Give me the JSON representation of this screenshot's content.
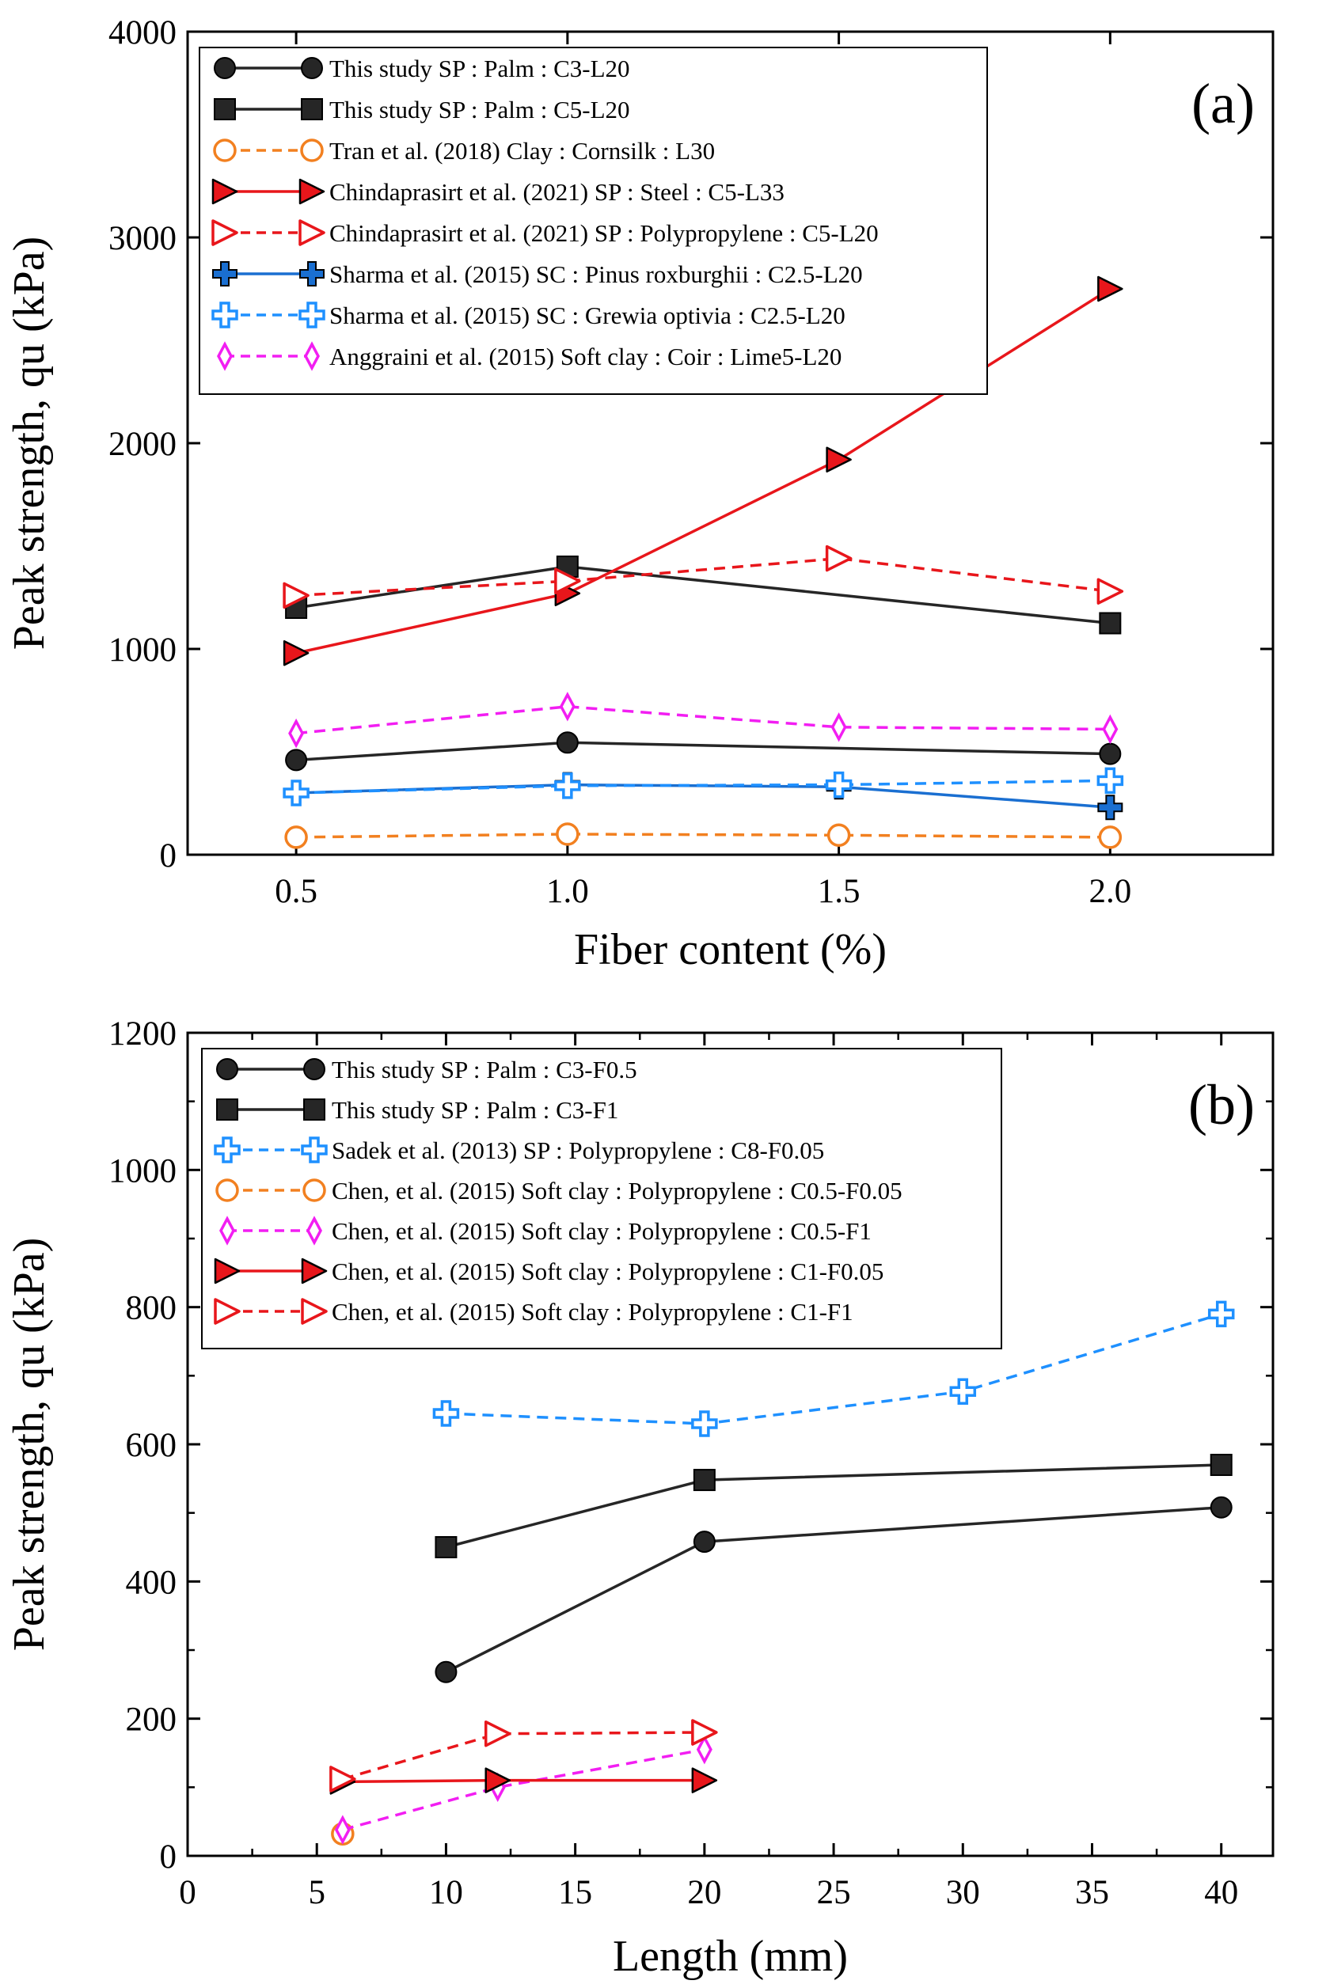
{
  "colors": {
    "black": "#000000",
    "dark": "#262626",
    "red": "#e8161b",
    "orange": "#f28020",
    "blue_dark": "#1a6fd1",
    "blue_light": "#1e90ff",
    "magenta": "#f21ef2"
  },
  "chart_data": [
    {
      "panel": "(a)",
      "type": "line",
      "xlabel": "Fiber content (%)",
      "ylabel": "Peak strength, qu (kPa)",
      "xlim": [
        0.3,
        2.3
      ],
      "ylim": [
        0,
        4000
      ],
      "xticks": [
        0.5,
        1.0,
        1.5,
        2.0
      ],
      "xtick_labels": [
        "0.5",
        "1.0",
        "1.5",
        "2.0"
      ],
      "yticks": [
        0,
        1000,
        2000,
        3000,
        4000
      ],
      "ytick_labels": [
        "0",
        "1000",
        "2000",
        "3000",
        "4000"
      ],
      "legend_position": "top-left",
      "series": [
        {
          "name": "This study  SP : Palm : C3-L20",
          "marker": "circle",
          "filled": true,
          "dashed": false,
          "color": "#262626",
          "x": [
            0.5,
            1.0,
            2.0
          ],
          "y": [
            460,
            545,
            490
          ]
        },
        {
          "name": "This study  SP : Palm : C5-L20",
          "marker": "square",
          "filled": true,
          "dashed": false,
          "color": "#262626",
          "x": [
            0.5,
            1.0,
            2.0
          ],
          "y": [
            1200,
            1400,
            1125
          ]
        },
        {
          "name": "Tran et al. (2018) Clay : Cornsilk : L30",
          "marker": "circle",
          "filled": false,
          "dashed": true,
          "color": "#f28020",
          "x": [
            0.5,
            1.0,
            1.5,
            2.0
          ],
          "y": [
            85,
            100,
            95,
            85
          ]
        },
        {
          "name": "Chindaprasirt et al. (2021) SP : Steel : C5-L33",
          "marker": "triangle-right",
          "filled": true,
          "dashed": false,
          "color": "#e8161b",
          "x": [
            0.5,
            1.0,
            1.5,
            2.0
          ],
          "y": [
            980,
            1270,
            1920,
            2750
          ]
        },
        {
          "name": "Chindaprasirt et al. (2021) SP : Polypropylene : C5-L20",
          "marker": "triangle-right",
          "filled": false,
          "dashed": true,
          "color": "#e8161b",
          "x": [
            0.5,
            1.0,
            1.5,
            2.0
          ],
          "y": [
            1260,
            1330,
            1440,
            1280
          ]
        },
        {
          "name": "Sharma et al. (2015) SC : Pinus roxburghii : C2.5-L20",
          "marker": "plus",
          "filled": true,
          "dashed": false,
          "color": "#1a6fd1",
          "x": [
            0.5,
            1.0,
            1.5,
            2.0
          ],
          "y": [
            300,
            340,
            330,
            230
          ]
        },
        {
          "name": "Sharma et al. (2015) SC : Grewia optivia : C2.5-L20",
          "marker": "plus",
          "filled": false,
          "dashed": true,
          "color": "#1e90ff",
          "x": [
            0.5,
            1.0,
            1.5,
            2.0
          ],
          "y": [
            300,
            335,
            340,
            360
          ]
        },
        {
          "name": "Anggraini et al. (2015) Soft clay : Coir : Lime5-L20",
          "marker": "diamond",
          "filled": false,
          "dashed": true,
          "color": "#f21ef2",
          "x": [
            0.5,
            1.0,
            1.5,
            2.0
          ],
          "y": [
            590,
            720,
            620,
            610
          ]
        }
      ]
    },
    {
      "panel": "(b)",
      "type": "line",
      "xlabel": "Length (mm)",
      "ylabel": "Peak strength, qu (kPa)",
      "xlim": [
        0,
        42
      ],
      "ylim": [
        0,
        1200
      ],
      "xticks": [
        0,
        5,
        10,
        15,
        20,
        25,
        30,
        35,
        40
      ],
      "xtick_labels": [
        "0",
        "5",
        "10",
        "15",
        "20",
        "25",
        "30",
        "35",
        "40"
      ],
      "yticks": [
        0,
        200,
        400,
        600,
        800,
        1000,
        1200
      ],
      "ytick_labels": [
        "0",
        "200",
        "400",
        "600",
        "800",
        "1000",
        "1200"
      ],
      "legend_position": "top-left",
      "series": [
        {
          "name": "This study SP : Palm : C3-F0.5",
          "marker": "circle",
          "filled": true,
          "dashed": false,
          "color": "#262626",
          "x": [
            10,
            20,
            40
          ],
          "y": [
            268,
            458,
            508
          ]
        },
        {
          "name": "This study SP : Palm : C3-F1",
          "marker": "square",
          "filled": true,
          "dashed": false,
          "color": "#262626",
          "x": [
            10,
            20,
            40
          ],
          "y": [
            450,
            548,
            570
          ]
        },
        {
          "name": "Sadek et al. (2013) SP : Polypropylene : C8-F0.05",
          "marker": "plus",
          "filled": false,
          "dashed": true,
          "color": "#1e90ff",
          "x": [
            10,
            20,
            30,
            40
          ],
          "y": [
            645,
            630,
            677,
            790
          ]
        },
        {
          "name": "Chen, et al. (2015) Soft clay : Polypropylene : C0.5-F0.05",
          "marker": "circle",
          "filled": false,
          "dashed": true,
          "color": "#f28020",
          "x": [
            6
          ],
          "y": [
            32
          ]
        },
        {
          "name": "Chen, et al. (2015) Soft clay : Polypropylene : C0.5-F1",
          "marker": "diamond",
          "filled": false,
          "dashed": true,
          "color": "#f21ef2",
          "x": [
            6,
            12,
            20
          ],
          "y": [
            38,
            100,
            155
          ]
        },
        {
          "name": "Chen, et al. (2015) Soft clay : Polypropylene : C1-F0.05",
          "marker": "triangle-right",
          "filled": true,
          "dashed": false,
          "color": "#e8161b",
          "x": [
            6,
            12,
            20
          ],
          "y": [
            108,
            110,
            110
          ]
        },
        {
          "name": "Chen, et al. (2015) Soft clay : Polypropylene : C1-F1",
          "marker": "triangle-right",
          "filled": false,
          "dashed": true,
          "color": "#e8161b",
          "x": [
            6,
            12,
            20
          ],
          "y": [
            112,
            178,
            180
          ]
        }
      ]
    }
  ]
}
